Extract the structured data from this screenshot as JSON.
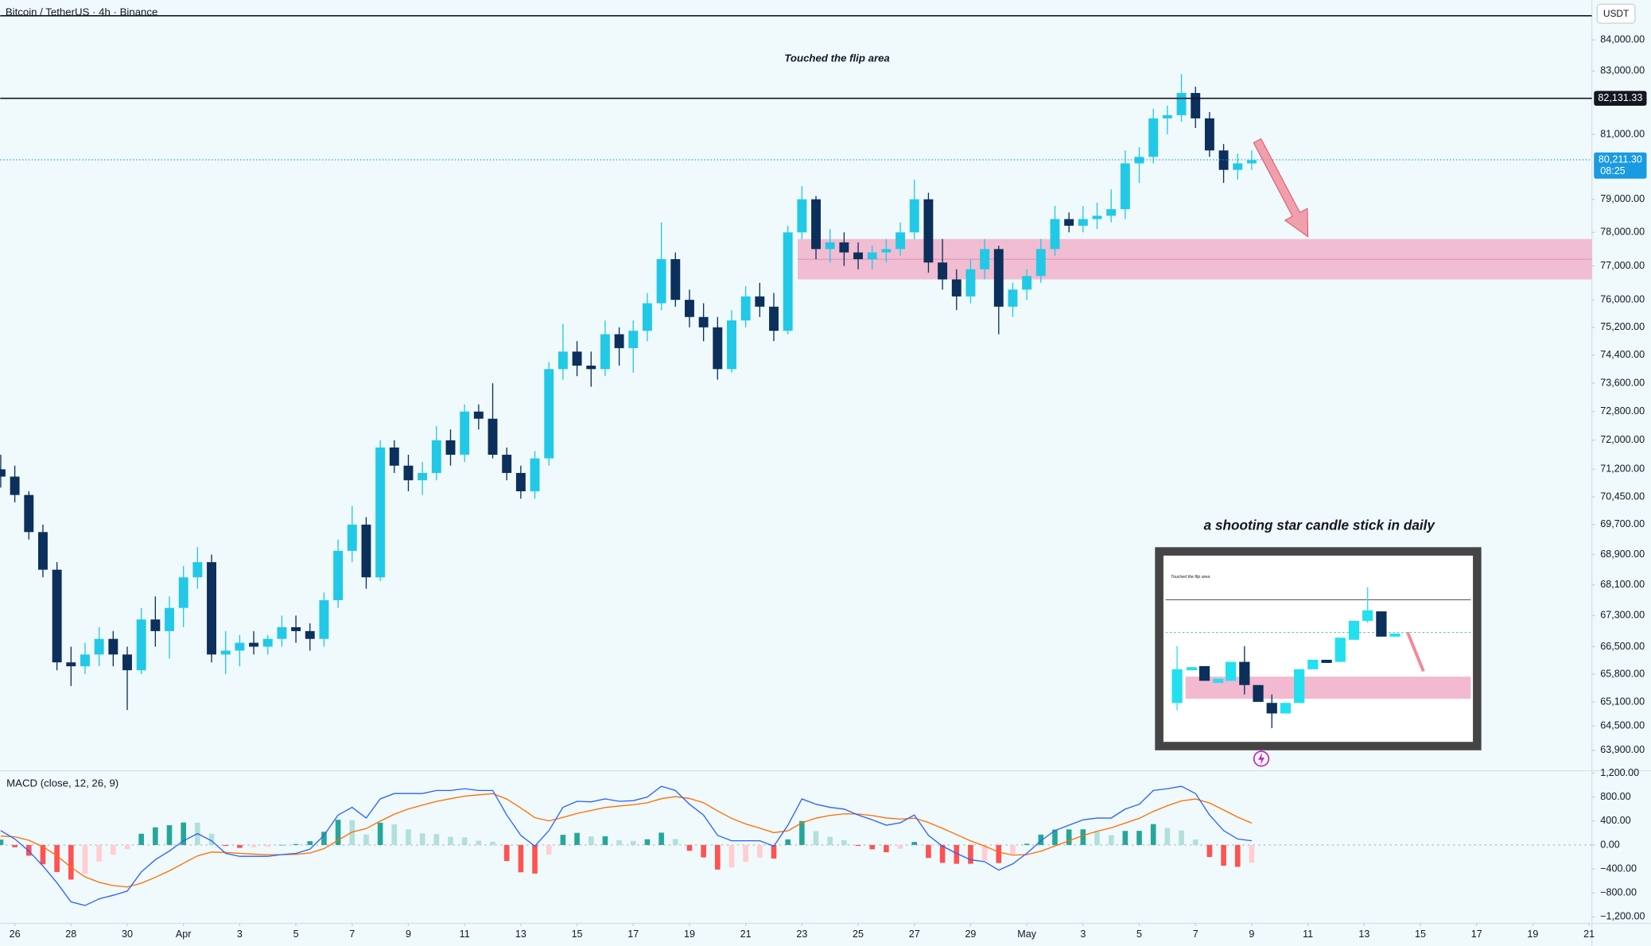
{
  "chart_data": [
    {
      "type": "candlestick",
      "title": "Bitcoin / TetherUS · 4h · Binance",
      "currency": "USDT",
      "x": [
        -0.5,
        0,
        0.5,
        1,
        1.5,
        2,
        2.5,
        3,
        3.5,
        4,
        4.5,
        5,
        5.5,
        6,
        6.5,
        7,
        7.5,
        8,
        8.5,
        9,
        9.5,
        10,
        10.5,
        11,
        11.5,
        12,
        12.5,
        13,
        13.5,
        14,
        14.5,
        15,
        15.5,
        16,
        16.5,
        17,
        17.5,
        18,
        18.5,
        19,
        19.5,
        20,
        20.5,
        21,
        21.5,
        22,
        22.5,
        23,
        23.5,
        24,
        24.5,
        25,
        25.5,
        26,
        26.5,
        27,
        27.5,
        28,
        28.5,
        29,
        29.5,
        30,
        30.5,
        31,
        31.5,
        32,
        32.5,
        33,
        33.5,
        34,
        34.5,
        35,
        35.5,
        36,
        36.5,
        37,
        37.5,
        38,
        38.5,
        39,
        39.5,
        40,
        40.5,
        41,
        41.5,
        42,
        42.5,
        43,
        43.5,
        44
      ],
      "open": [
        71200,
        71000,
        70500,
        69500,
        68500,
        66100,
        66000,
        66300,
        66700,
        66300,
        65900,
        67200,
        66900,
        67500,
        68300,
        68700,
        66300,
        66400,
        66600,
        66500,
        66700,
        67000,
        66900,
        66700,
        67700,
        69000,
        69700,
        68300,
        71800,
        71300,
        70900,
        71100,
        72000,
        71600,
        72800,
        72600,
        71600,
        71100,
        70600,
        71500,
        74000,
        74500,
        74100,
        74000,
        75000,
        74600,
        75100,
        75900,
        77200,
        76000,
        75500,
        75200,
        74000,
        75400,
        76100,
        75800,
        75100,
        78000,
        79000,
        77500,
        77700,
        77400,
        77200,
        77400,
        77500,
        78000,
        79000,
        77100,
        76600,
        76100,
        76900,
        77500,
        75800,
        76300,
        76700,
        77500,
        78400,
        78200,
        78400,
        78500,
        78700,
        80100,
        80300,
        81500,
        81600,
        82300,
        81500,
        80500,
        79900,
        80100
      ],
      "high": [
        71600,
        71300,
        70600,
        69700,
        68700,
        66500,
        66600,
        67000,
        66900,
        66500,
        67500,
        67800,
        67800,
        68600,
        69100,
        68900,
        66900,
        66800,
        66900,
        66800,
        67300,
        67300,
        67100,
        67900,
        69300,
        70200,
        69900,
        72000,
        72000,
        71600,
        71400,
        72400,
        72300,
        73000,
        73000,
        73600,
        71800,
        71300,
        71700,
        74200,
        75300,
        74800,
        74500,
        75400,
        75200,
        75400,
        76200,
        78300,
        77400,
        76300,
        75900,
        75500,
        75700,
        76400,
        76500,
        76200,
        78200,
        79400,
        79100,
        78100,
        78000,
        77700,
        77600,
        77800,
        78300,
        79600,
        79200,
        77800,
        76900,
        77200,
        77800,
        77600,
        76500,
        76900,
        77800,
        78800,
        78600,
        78800,
        78900,
        79300,
        80500,
        80600,
        81800,
        81900,
        82900,
        82500,
        81700,
        80700,
        80400,
        80500
      ],
      "low": [
        70700,
        70300,
        69300,
        68300,
        65900,
        65500,
        65800,
        66000,
        66000,
        64900,
        65800,
        66500,
        66200,
        67000,
        68000,
        66100,
        65800,
        66000,
        66300,
        66300,
        66500,
        66600,
        66400,
        66500,
        67500,
        68700,
        68000,
        68200,
        71100,
        70600,
        70500,
        70900,
        71300,
        71400,
        72300,
        71500,
        70900,
        70400,
        70400,
        71300,
        73700,
        73800,
        73500,
        73800,
        74100,
        73900,
        74800,
        75700,
        75800,
        75200,
        74800,
        73700,
        73900,
        75200,
        75500,
        74800,
        75000,
        77800,
        77200,
        77100,
        77000,
        76900,
        76900,
        77100,
        77300,
        77800,
        76800,
        76300,
        75700,
        75900,
        76600,
        75000,
        75500,
        76000,
        76500,
        77300,
        78000,
        78000,
        78100,
        78300,
        78400,
        79500,
        80100,
        81000,
        81400,
        81200,
        80300,
        79500,
        79600,
        79900
      ],
      "close": [
        71000,
        70500,
        69500,
        68500,
        66100,
        66000,
        66300,
        66700,
        66300,
        65900,
        67200,
        66900,
        67500,
        68300,
        68700,
        66300,
        66400,
        66600,
        66500,
        66700,
        67000,
        66900,
        66700,
        67700,
        69000,
        69700,
        68300,
        71800,
        71300,
        70900,
        71100,
        72000,
        71600,
        72800,
        72600,
        71600,
        71100,
        70600,
        71500,
        74000,
        74500,
        74100,
        74000,
        75000,
        74600,
        75100,
        75900,
        77200,
        76000,
        75500,
        75200,
        74000,
        75400,
        76100,
        75800,
        75100,
        78000,
        79000,
        77500,
        77700,
        77400,
        77200,
        77400,
        77500,
        78000,
        79000,
        77100,
        76600,
        76100,
        76900,
        77500,
        75800,
        76300,
        76700,
        77500,
        78400,
        78200,
        78400,
        78500,
        78700,
        80100,
        80300,
        81500,
        81600,
        82300,
        81500,
        80500,
        79900,
        80100,
        80200
      ],
      "up_color": "#22c9e6",
      "down_color": "#0c2f5c",
      "log_scale": true,
      "grid": false,
      "ylim": [
        63410,
        85300
      ],
      "yticks": [
        {
          "value": 84000,
          "label": "84,000.00"
        },
        {
          "value": 83000,
          "label": "83,000.00"
        },
        {
          "value": 81000,
          "label": "81,000.00"
        },
        {
          "value": 79000,
          "label": "79,000.00"
        },
        {
          "value": 78000,
          "label": "78,000.00"
        },
        {
          "value": 77000,
          "label": "77,000.00"
        },
        {
          "value": 76000,
          "label": "76,000.00"
        },
        {
          "value": 75200,
          "label": "75,200.00"
        },
        {
          "value": 74400,
          "label": "74,400.00"
        },
        {
          "value": 73600,
          "label": "73,600.00"
        },
        {
          "value": 72800,
          "label": "72,800.00"
        },
        {
          "value": 72000,
          "label": "72,000.00"
        },
        {
          "value": 71200,
          "label": "71,200.00"
        },
        {
          "value": 70450,
          "label": "70,450.00"
        },
        {
          "value": 69700,
          "label": "69,700.00"
        },
        {
          "value": 68900,
          "label": "68,900.00"
        },
        {
          "value": 68100,
          "label": "68,100.00"
        },
        {
          "value": 67300,
          "label": "67,300.00"
        },
        {
          "value": 66500,
          "label": "66,500.00"
        },
        {
          "value": 65800,
          "label": "65,800.00"
        },
        {
          "value": 65100,
          "label": "65,100.00"
        },
        {
          "value": 64500,
          "label": "64,500.00"
        },
        {
          "value": 63900,
          "label": "63,900.00"
        }
      ],
      "xlim": [
        -0.52,
        56.1
      ],
      "xticks": [
        {
          "value": 0,
          "label": "26"
        },
        {
          "value": 2,
          "label": "28"
        },
        {
          "value": 4,
          "label": "30"
        },
        {
          "value": 6,
          "label": "Apr"
        },
        {
          "value": 8,
          "label": "3"
        },
        {
          "value": 10,
          "label": "5"
        },
        {
          "value": 12,
          "label": "7"
        },
        {
          "value": 14,
          "label": "9"
        },
        {
          "value": 16,
          "label": "11"
        },
        {
          "value": 18,
          "label": "13"
        },
        {
          "value": 20,
          "label": "15"
        },
        {
          "value": 22,
          "label": "17"
        },
        {
          "value": 24,
          "label": "19"
        },
        {
          "value": 26,
          "label": "21"
        },
        {
          "value": 28,
          "label": "23"
        },
        {
          "value": 30,
          "label": "25"
        },
        {
          "value": 32,
          "label": "27"
        },
        {
          "value": 34,
          "label": "29"
        },
        {
          "value": 36,
          "label": "May"
        },
        {
          "value": 38,
          "label": "3"
        },
        {
          "value": 40,
          "label": "5"
        },
        {
          "value": 42,
          "label": "7"
        },
        {
          "value": 44,
          "label": "9"
        },
        {
          "value": 46,
          "label": "11"
        },
        {
          "value": 48,
          "label": "13"
        },
        {
          "value": 50,
          "label": "15"
        },
        {
          "value": 52,
          "label": "17"
        },
        {
          "value": 54,
          "label": "19"
        },
        {
          "value": 56,
          "label": "21"
        }
      ],
      "annotation": "Touched the flip area",
      "resistance": {
        "value": 82131.33,
        "label": "82,131.33",
        "color": "#131722"
      },
      "last_price": {
        "value": 80211.3,
        "label": "80,211.30",
        "countdown": "08:25",
        "color": "#1a9ae0"
      },
      "zone": {
        "x": [
          27.85,
          56.1
        ],
        "y": [
          76600,
          77800
        ],
        "color": "#f0a8c4"
      },
      "arrow": {
        "x": [
          44.2,
          46.0
        ],
        "y": [
          80800,
          77870
        ],
        "color": "#f08a98"
      },
      "inset": {
        "caption": "a shooting star candle stick in daily",
        "note": "Touched the flip area"
      }
    },
    {
      "type": "macd",
      "title": "MACD (close, 12, 26, 9)",
      "x": [
        -0.5,
        0,
        0.5,
        1,
        1.5,
        2,
        2.5,
        3,
        3.5,
        4,
        4.5,
        5,
        5.5,
        6,
        6.5,
        7,
        7.5,
        8,
        8.5,
        9,
        9.5,
        10,
        10.5,
        11,
        11.5,
        12,
        12.5,
        13,
        13.5,
        14,
        14.5,
        15,
        15.5,
        16,
        16.5,
        17,
        17.5,
        18,
        18.5,
        19,
        19.5,
        20,
        20.5,
        21,
        21.5,
        22,
        22.5,
        23,
        23.5,
        24,
        24.5,
        25,
        25.5,
        26,
        26.5,
        27,
        27.5,
        28,
        28.5,
        29,
        29.5,
        30,
        30.5,
        31,
        31.5,
        32,
        32.5,
        33,
        33.5,
        34,
        34.5,
        35,
        35.5,
        36,
        36.5,
        37,
        37.5,
        38,
        38.5,
        39,
        39.5,
        40,
        40.5,
        41,
        41.5,
        42,
        42.5,
        43,
        43.5,
        44
      ],
      "macd": {
        "color": "#2962ff",
        "values": [
          240,
          100,
          -100,
          -350,
          -630,
          -950,
          -1010,
          -900,
          -840,
          -770,
          -450,
          -245,
          -100,
          70,
          190,
          70,
          -140,
          -190,
          -190,
          -190,
          -160,
          -140,
          -70,
          160,
          500,
          630,
          450,
          770,
          860,
          860,
          860,
          910,
          910,
          940,
          910,
          910,
          500,
          160,
          -20,
          240,
          630,
          730,
          720,
          770,
          730,
          740,
          800,
          980,
          910,
          680,
          500,
          160,
          70,
          70,
          70,
          -20,
          330,
          770,
          680,
          630,
          600,
          500,
          420,
          330,
          370,
          500,
          160,
          -20,
          -140,
          -245,
          -280,
          -420,
          -315,
          -140,
          70,
          240,
          330,
          420,
          450,
          450,
          600,
          680,
          910,
          940,
          980,
          860,
          500,
          240,
          100,
          70
        ]
      },
      "signal": {
        "color": "#ff6d00",
        "values": [
          150,
          138,
          79,
          -28,
          -179,
          -372,
          -532,
          -624,
          -678,
          -701,
          -638,
          -540,
          -430,
          -305,
          -181,
          -118,
          -124,
          -141,
          -153,
          -162,
          -161,
          -156,
          -134,
          -61,
          79,
          217,
          275,
          399,
          514,
          601,
          666,
          727,
          773,
          815,
          839,
          857,
          768,
          616,
          457,
          403,
          460,
          528,
          576,
          625,
          651,
          673,
          705,
          774,
          808,
          776,
          707,
          570,
          445,
          351,
          281,
          206,
          237,
          370,
          448,
          494,
          521,
          516,
          492,
          452,
          432,
          449,
          377,
          278,
          174,
          69,
          -18,
          -119,
          -168,
          -161,
          -103,
          -17,
          70,
          158,
          231,
          286,
          365,
          444,
          561,
          656,
          737,
          768,
          701,
          586,
          465,
          366
        ]
      },
      "histogram": {
        "colors": {
          "grow_above": "#26a69a",
          "fall_above": "#b2dfdb",
          "grow_below": "#ffcdd2",
          "fall_below": "#ff5252"
        },
        "values": [
          90,
          -38,
          -179,
          -322,
          -451,
          -578,
          -478,
          -276,
          -162,
          -69,
          188,
          295,
          330,
          375,
          371,
          188,
          -16,
          -49,
          -37,
          -28,
          1,
          16,
          64,
          221,
          421,
          413,
          175,
          371,
          346,
          259,
          194,
          183,
          137,
          125,
          71,
          53,
          -268,
          -456,
          -477,
          -163,
          170,
          202,
          144,
          145,
          79,
          67,
          95,
          206,
          102,
          -96,
          -207,
          -410,
          -375,
          -281,
          -211,
          -226,
          93,
          400,
          232,
          136,
          79,
          -16,
          -72,
          -122,
          -62,
          51,
          -217,
          -298,
          -314,
          -314,
          -262,
          -301,
          -147,
          21,
          173,
          257,
          260,
          262,
          219,
          164,
          235,
          236,
          349,
          284,
          243,
          92,
          -201,
          -346,
          -365,
          -296
        ]
      },
      "ylim": [
        -1300,
        1230
      ],
      "yticks": [
        {
          "value": 1200,
          "label": "1,200.00"
        },
        {
          "value": 800,
          "label": "800.00"
        },
        {
          "value": 400,
          "label": "400.00"
        },
        {
          "value": 0,
          "label": "0.00"
        },
        {
          "value": -400,
          "label": "−400.00"
        },
        {
          "value": -800,
          "label": "−800.00"
        },
        {
          "value": -1200,
          "label": "−1,200.00"
        }
      ]
    }
  ]
}
